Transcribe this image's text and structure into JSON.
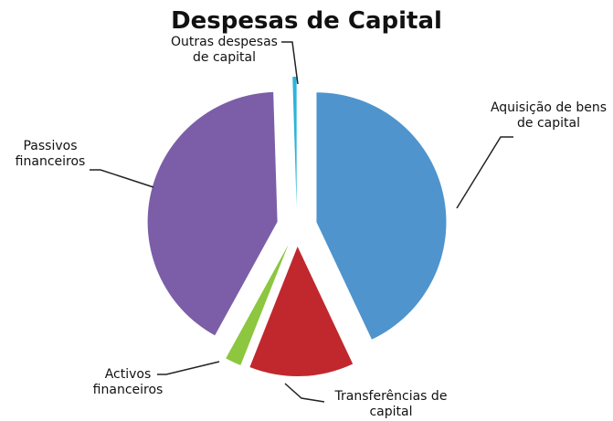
{
  "chart_data": {
    "type": "pie",
    "title": "Despesas de Capital",
    "categories": [
      "Aquisição de bens de capital",
      "Transferências de capital",
      "Activos financeiros",
      "Passivos financeiros",
      "Outras despesas de capital"
    ],
    "values": [
      43,
      13,
      2,
      41.5,
      0.5
    ],
    "colors": [
      "#4f94cd",
      "#c0282e",
      "#8dc63f",
      "#7b5ea7",
      "#2bb5d8"
    ]
  }
}
